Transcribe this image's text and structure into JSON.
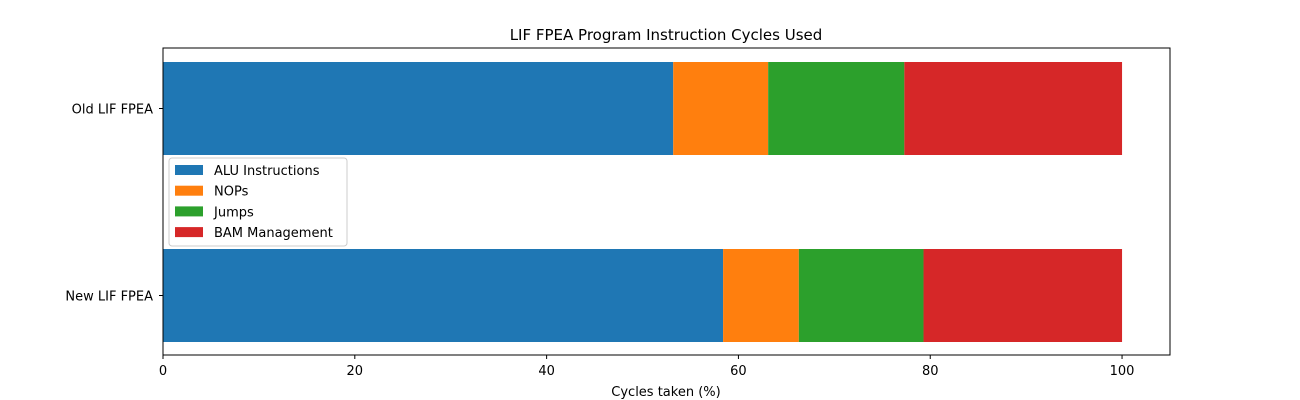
{
  "chart_data": {
    "type": "bar",
    "orientation": "horizontal",
    "stacked": true,
    "title": "LIF FPEA Program Instruction Cycles Used",
    "xlabel": "Cycles taken (%)",
    "ylabel": "",
    "xlim": [
      0,
      105
    ],
    "xticks": [
      0,
      20,
      40,
      60,
      80,
      100
    ],
    "grid": false,
    "legend_position": "center-left",
    "categories": [
      "Old LIF FPEA",
      "New LIF FPEA"
    ],
    "series": [
      {
        "name": "ALU Instructions",
        "color": "#1f77b4",
        "values": [
          53.2,
          58.4
        ]
      },
      {
        "name": "NOPs",
        "color": "#ff7f0e",
        "values": [
          9.9,
          7.9
        ]
      },
      {
        "name": "Jumps",
        "color": "#2ca02c",
        "values": [
          14.2,
          13.0
        ]
      },
      {
        "name": "BAM Management",
        "color": "#d62728",
        "values": [
          22.7,
          20.7
        ]
      }
    ]
  }
}
